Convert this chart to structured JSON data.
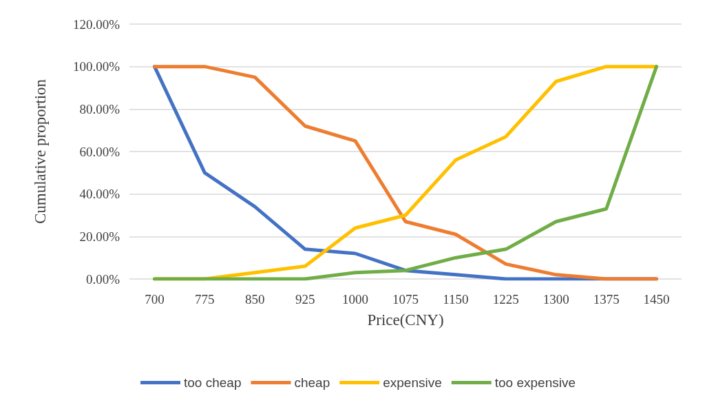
{
  "chart_data": {
    "type": "line",
    "xlabel": "Price(CNY)",
    "ylabel": "Cumulative proportion",
    "categories": [
      "700",
      "775",
      "850",
      "925",
      "1000",
      "1075",
      "1150",
      "1225",
      "1300",
      "1375",
      "1450"
    ],
    "series": [
      {
        "name": "too cheap",
        "color": "#4472c4",
        "values": [
          100,
          50,
          34,
          14,
          12,
          4,
          2,
          0,
          0,
          0,
          0
        ]
      },
      {
        "name": "cheap",
        "color": "#ed7d31",
        "values": [
          100,
          100,
          95,
          72,
          65,
          27,
          21,
          7,
          2,
          0,
          0
        ]
      },
      {
        "name": "expensive",
        "color": "#ffc000",
        "values": [
          0,
          0,
          3,
          6,
          24,
          30,
          56,
          67,
          93,
          100,
          100
        ]
      },
      {
        "name": "too expensive",
        "color": "#70ad47",
        "values": [
          0,
          0,
          0,
          0,
          3,
          4,
          10,
          14,
          27,
          33,
          100
        ]
      }
    ],
    "ylim": [
      0,
      120
    ],
    "yticks": [
      {
        "value": 0,
        "label": "0.00%"
      },
      {
        "value": 20,
        "label": "20.00%"
      },
      {
        "value": 40,
        "label": "40.00%"
      },
      {
        "value": 60,
        "label": "60.00%"
      },
      {
        "value": 80,
        "label": "80.00%"
      },
      {
        "value": 100,
        "label": "100.00%"
      },
      {
        "value": 120,
        "label": "120.00%"
      }
    ],
    "grid": "y",
    "legend": "bottom",
    "marker": "none",
    "line_style": "solid"
  }
}
